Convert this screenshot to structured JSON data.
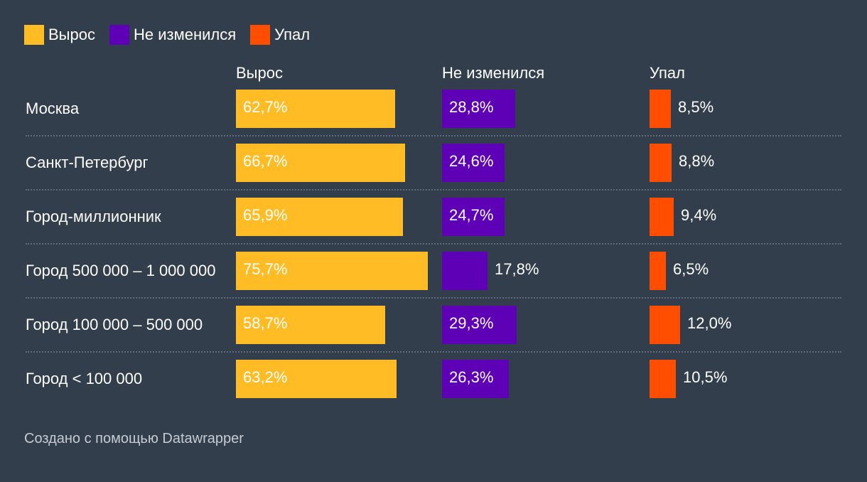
{
  "chart_data": {
    "type": "bar",
    "categories": [
      "Москва",
      "Санкт-Петербург",
      "Город-миллионник",
      "Город 500 000 – 1 000 000",
      "Город 100 000 – 500 000",
      "Город < 100 000"
    ],
    "series": [
      {
        "name": "Вырос",
        "color": "#ffbc25",
        "values": [
          62.7,
          66.7,
          65.9,
          75.7,
          58.7,
          63.2
        ],
        "labels": [
          "62,7%",
          "66,7%",
          "65,9%",
          "75,7%",
          "58,7%",
          "63,2%"
        ]
      },
      {
        "name": "Не изменился",
        "color": "#5e00b5",
        "values": [
          28.8,
          24.6,
          24.7,
          17.8,
          29.3,
          26.3
        ],
        "labels": [
          "28,8%",
          "24,6%",
          "24,7%",
          "17,8%",
          "29,3%",
          "26,3%"
        ]
      },
      {
        "name": "Упал",
        "color": "#ff4e00",
        "values": [
          8.5,
          8.8,
          9.4,
          6.5,
          12.0,
          10.5
        ],
        "labels": [
          "8,5%",
          "8,8%",
          "9,4%",
          "6,5%",
          "12,0%",
          "10,5%"
        ]
      }
    ],
    "unit": "%"
  },
  "footer": "Создано с помощью Datawrapper"
}
